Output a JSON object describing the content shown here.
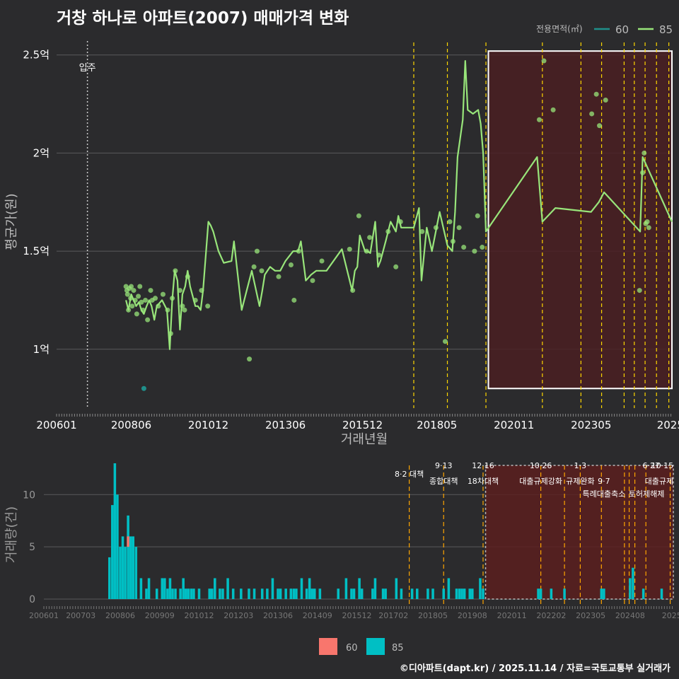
{
  "title": "거창 하나로 아파트(2007) 매매가격 변화",
  "footer": "©디아파트(dapt.kr) / 2025.11.14 / 자료=국토교통부 실거래가",
  "colors": {
    "background": "#2b2b2d",
    "grid": "#5a5a5c",
    "line85": "#98e57a",
    "line60": "#1f8f8a",
    "bar85": "#00bfc4",
    "bar60": "#f8766d",
    "policy_line": "#ffd700",
    "bar_policy_line": "#ffa500",
    "highlight_fill": "#4a1e22",
    "highlight_border": "#ffffff"
  },
  "chart_data": [
    {
      "type": "line",
      "title": "거창 하나로 아파트(2007) 매매가격 변화",
      "xlabel": "거래년월",
      "ylabel": "평균가(원)",
      "x_unit": "years (decimal)",
      "xlim": [
        2006.0,
        2025.95
      ],
      "ylim": [
        0.7,
        2.6
      ],
      "y_unit": "억원",
      "x_tick_labels": [
        "200601",
        "200806",
        "201012",
        "201306",
        "201512",
        "201805",
        "202011",
        "202305",
        "2025"
      ],
      "x_tick_values": [
        2006.0,
        2008.42,
        2010.92,
        2013.42,
        2015.92,
        2018.33,
        2020.83,
        2023.33,
        2025.9
      ],
      "y_tick_labels": [
        "1억",
        "1.5억",
        "2억",
        "2.5억"
      ],
      "y_tick_values": [
        1.0,
        1.5,
        2.0,
        2.5
      ],
      "legend": {
        "title": "전용면적(㎡)",
        "entries": [
          "60",
          "85"
        ],
        "position": "top-right"
      },
      "move_in": {
        "label": "입주",
        "x": 2007.0
      },
      "policy_lines": [
        2017.58,
        2018.67,
        2019.92,
        2021.75,
        2023.0,
        2023.67,
        2024.4,
        2024.73,
        2025.08,
        2025.45,
        2025.85
      ],
      "highlight": {
        "x_start": 2020.0,
        "x_end": 2025.95,
        "y_start": 0.8,
        "y_end": 2.52
      },
      "series": [
        {
          "name": "85",
          "x": [
            2008.25,
            2008.33,
            2008.42,
            2008.5,
            2008.58,
            2008.67,
            2008.75,
            2008.83,
            2008.92,
            2009.0,
            2009.08,
            2009.17,
            2009.25,
            2009.42,
            2009.58,
            2009.67,
            2009.75,
            2009.83,
            2009.92,
            2010.0,
            2010.08,
            2010.17,
            2010.25,
            2010.33,
            2010.5,
            2010.58,
            2010.67,
            2010.75,
            2010.92,
            2011.0,
            2011.08,
            2011.25,
            2011.42,
            2011.67,
            2011.75,
            2012.0,
            2012.33,
            2012.58,
            2012.67,
            2012.75,
            2012.92,
            2013.08,
            2013.25,
            2013.42,
            2013.67,
            2013.83,
            2013.92,
            2014.08,
            2014.25,
            2014.42,
            2014.75,
            2015.25,
            2015.58,
            2015.67,
            2015.75,
            2015.83,
            2016.0,
            2016.08,
            2016.17,
            2016.33,
            2016.42,
            2016.5,
            2016.67,
            2016.83,
            2017.0,
            2017.08,
            2017.17,
            2017.58,
            2017.75,
            2017.83,
            2018.0,
            2018.17,
            2018.42,
            2018.67,
            2018.83,
            2018.92,
            2019.0,
            2019.17,
            2019.25,
            2019.33,
            2019.5,
            2019.67,
            2019.75,
            2019.83,
            2019.92,
            2021.58,
            2021.75,
            2022.17,
            2023.33,
            2023.58,
            2023.75,
            2024.92,
            2025.0,
            2025.95
          ],
          "y": [
            1.25,
            1.2,
            1.28,
            1.25,
            1.22,
            1.24,
            1.2,
            1.18,
            1.22,
            1.25,
            1.22,
            1.15,
            1.22,
            1.25,
            1.2,
            1.0,
            1.25,
            1.4,
            1.35,
            1.1,
            1.28,
            1.32,
            1.4,
            1.32,
            1.22,
            1.22,
            1.2,
            1.3,
            1.65,
            1.63,
            1.6,
            1.5,
            1.44,
            1.45,
            1.55,
            1.2,
            1.4,
            1.22,
            1.3,
            1.38,
            1.42,
            1.4,
            1.4,
            1.45,
            1.5,
            1.5,
            1.55,
            1.35,
            1.38,
            1.4,
            1.4,
            1.51,
            1.3,
            1.4,
            1.42,
            1.58,
            1.5,
            1.5,
            1.49,
            1.65,
            1.42,
            1.45,
            1.55,
            1.65,
            1.6,
            1.68,
            1.62,
            1.62,
            1.72,
            1.35,
            1.62,
            1.5,
            1.7,
            1.53,
            1.5,
            1.7,
            1.98,
            2.17,
            2.47,
            2.22,
            2.2,
            2.22,
            2.15,
            2.0,
            1.6,
            1.98,
            1.65,
            1.72,
            1.7,
            1.75,
            1.8,
            1.6,
            1.98,
            1.65
          ],
          "scatter_x": [
            2008.25,
            2008.28,
            2008.3,
            2008.33,
            2008.36,
            2008.4,
            2008.42,
            2008.45,
            2008.5,
            2008.55,
            2008.6,
            2008.65,
            2008.7,
            2008.75,
            2008.8,
            2008.88,
            2008.95,
            2009.05,
            2009.1,
            2009.2,
            2009.3,
            2009.45,
            2009.6,
            2009.7,
            2009.75,
            2009.85,
            2010.0,
            2010.08,
            2010.15,
            2010.25,
            2010.5,
            2010.7,
            2010.9,
            2012.25,
            2012.4,
            2012.5,
            2012.65,
            2013.2,
            2013.6,
            2013.7,
            2013.85,
            2014.3,
            2014.6,
            2015.5,
            2015.6,
            2015.8,
            2016.05,
            2016.15,
            2016.45,
            2016.75,
            2017.0,
            2017.15,
            2017.85,
            2018.3,
            2018.6,
            2018.75,
            2018.85,
            2019.05,
            2019.2,
            2019.55,
            2019.65,
            2019.8,
            2021.65,
            2021.8,
            2022.1,
            2023.35,
            2023.5,
            2023.6,
            2023.8,
            2024.9,
            2025.0,
            2025.05,
            2025.1,
            2025.15,
            2025.2
          ],
          "scatter_y": [
            1.32,
            1.3,
            1.28,
            1.2,
            1.31,
            1.26,
            1.32,
            1.22,
            1.3,
            1.25,
            1.18,
            1.27,
            1.32,
            1.24,
            1.2,
            1.25,
            1.15,
            1.3,
            1.25,
            1.26,
            1.22,
            1.28,
            1.2,
            1.08,
            1.26,
            1.4,
            1.3,
            1.22,
            1.2,
            1.37,
            1.25,
            1.3,
            1.22,
            0.95,
            1.42,
            1.5,
            1.4,
            1.37,
            1.43,
            1.25,
            1.5,
            1.35,
            1.45,
            1.51,
            1.3,
            1.68,
            1.5,
            1.57,
            1.48,
            1.6,
            1.42,
            1.65,
            1.6,
            1.62,
            1.04,
            1.65,
            1.55,
            1.62,
            1.52,
            1.5,
            1.68,
            1.52,
            2.17,
            2.47,
            2.22,
            2.2,
            2.3,
            2.14,
            2.27,
            1.3,
            1.9,
            2.0,
            1.64,
            1.65,
            1.62
          ]
        },
        {
          "name": "60",
          "x": [
            2008.83
          ],
          "y": [
            0.8
          ]
        }
      ]
    },
    {
      "type": "bar",
      "xlabel": "",
      "ylabel": "거래량(건)",
      "xlim": [
        2006.0,
        2025.95
      ],
      "ylim": [
        0,
        13
      ],
      "y_tick_labels": [
        "0",
        "5",
        "10"
      ],
      "y_tick_values": [
        0,
        5,
        10
      ],
      "x_tick_labels": [
        "200601",
        "200703",
        "200806",
        "200909",
        "201012",
        "201203",
        "201306",
        "201409",
        "201512",
        "201702",
        "201805",
        "201908",
        "202011",
        "202202",
        "202305",
        "202408",
        "2025"
      ],
      "x_tick_values": [
        2006.0,
        2007.17,
        2008.42,
        2009.67,
        2010.92,
        2012.17,
        2013.42,
        2014.67,
        2015.92,
        2017.08,
        2018.33,
        2019.58,
        2020.83,
        2022.08,
        2023.33,
        2024.58,
        2025.9
      ],
      "legend": {
        "entries": [
          "60",
          "85"
        ],
        "position": "bottom"
      },
      "highlight": {
        "x_start": 2020.0,
        "x_end": 2025.95
      },
      "policy_lines": [
        2017.58,
        2018.67,
        2019.92,
        2021.75,
        2022.5,
        2023.0,
        2023.67,
        2024.4,
        2024.55,
        2024.73,
        2025.08,
        2025.85
      ],
      "annotations": [
        {
          "x": 2017.58,
          "y": 12.0,
          "text": "8·2 대책"
        },
        {
          "x": 2018.67,
          "y": 12.8,
          "text": "9·13"
        },
        {
          "x": 2018.67,
          "y": 11.3,
          "text": "종합대책"
        },
        {
          "x": 2019.92,
          "y": 12.8,
          "text": "12·16"
        },
        {
          "x": 2019.92,
          "y": 11.3,
          "text": "18차대책"
        },
        {
          "x": 2021.75,
          "y": 12.8,
          "text": "10·26"
        },
        {
          "x": 2021.75,
          "y": 11.3,
          "text": "대출규제강화"
        },
        {
          "x": 2023.0,
          "y": 12.8,
          "text": "1·3"
        },
        {
          "x": 2023.0,
          "y": 11.3,
          "text": "규제완화"
        },
        {
          "x": 2023.75,
          "y": 11.3,
          "text": "9·7"
        },
        {
          "x": 2023.75,
          "y": 10.1,
          "text": "특례대출축소"
        },
        {
          "x": 2025.1,
          "y": 10.1,
          "text": "토허제해제"
        },
        {
          "x": 2025.25,
          "y": 12.8,
          "text": "6·27"
        },
        {
          "x": 2025.6,
          "y": 12.8,
          "text": "10·15"
        },
        {
          "x": 2025.5,
          "y": 11.3,
          "text": "대출규제"
        }
      ],
      "series": [
        {
          "name": "85",
          "x": [
            2008.08,
            2008.17,
            2008.25,
            2008.33,
            2008.42,
            2008.5,
            2008.58,
            2008.67,
            2008.75,
            2008.83,
            2008.92,
            2009.08,
            2009.25,
            2009.33,
            2009.58,
            2009.75,
            2009.83,
            2009.92,
            2010.0,
            2010.08,
            2010.17,
            2010.33,
            2010.42,
            2010.5,
            2010.58,
            2010.67,
            2010.75,
            2010.92,
            2011.25,
            2011.33,
            2011.42,
            2011.58,
            2011.67,
            2011.83,
            2012.0,
            2012.25,
            2012.5,
            2012.67,
            2012.92,
            2013.08,
            2013.25,
            2013.42,
            2013.5,
            2013.67,
            2013.83,
            2013.92,
            2014.0,
            2014.17,
            2014.33,
            2014.42,
            2014.5,
            2014.58,
            2014.75,
            2015.33,
            2015.58,
            2015.75,
            2015.83,
            2016.0,
            2016.08,
            2016.42,
            2016.5,
            2016.75,
            2016.83,
            2017.17,
            2017.33,
            2017.67,
            2017.83,
            2018.17,
            2018.33,
            2018.67,
            2018.83,
            2019.08,
            2019.17,
            2019.25,
            2019.33,
            2019.5,
            2019.58,
            2019.83,
            2019.92,
            2021.67,
            2021.75,
            2022.08,
            2022.5,
            2023.67,
            2023.75,
            2024.58,
            2024.67,
            2025.0,
            2025.58
          ],
          "y": [
            4,
            9,
            13,
            10,
            5,
            6,
            5,
            8,
            6,
            6,
            5,
            2,
            1,
            2,
            1,
            2,
            2,
            1,
            2,
            1,
            1,
            1,
            2,
            1,
            1,
            1,
            1,
            1,
            1,
            1,
            2,
            1,
            1,
            2,
            1,
            1,
            1,
            1,
            1,
            1,
            2,
            1,
            1,
            1,
            1,
            1,
            1,
            2,
            1,
            2,
            1,
            1,
            1,
            1,
            2,
            1,
            1,
            2,
            1,
            1,
            2,
            1,
            1,
            2,
            1,
            1,
            1,
            1,
            1,
            1,
            2,
            1,
            1,
            1,
            1,
            1,
            1,
            2,
            1,
            1,
            1,
            1,
            1,
            1,
            1,
            2,
            3,
            1,
            1
          ]
        },
        {
          "name": "60",
          "x": [
            2008.67
          ],
          "y": [
            1
          ]
        }
      ]
    }
  ]
}
